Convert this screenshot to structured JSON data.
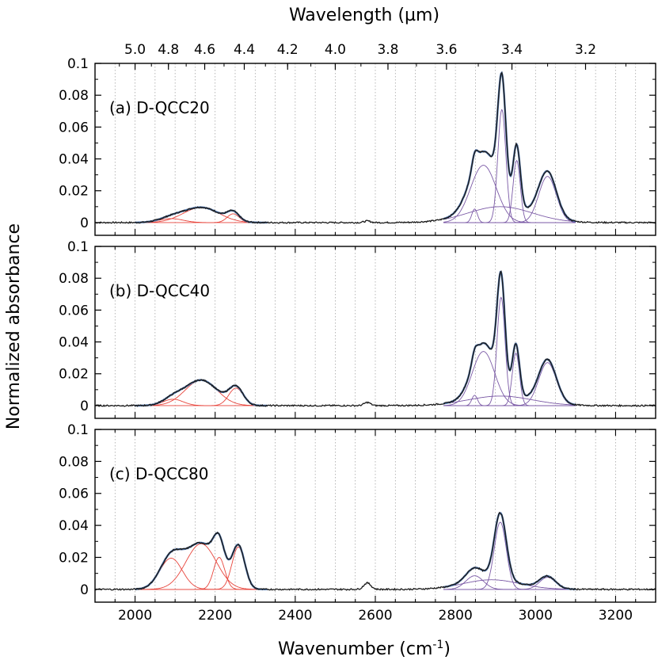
{
  "chart_data": {
    "type": "line",
    "x_title": "Wavenumber (cm",
    "x_title_sup": "-1",
    "x_title_end": ")",
    "top_title": "Wavelength (µm)",
    "y_title": "Normalized absorbance",
    "xlim": [
      1900,
      3300
    ],
    "ylim": [
      -0.008,
      0.1
    ],
    "x_ticks": [
      "2000",
      "2200",
      "2400",
      "2600",
      "2800",
      "3000",
      "3200"
    ],
    "x_tick_values": [
      2000,
      2200,
      2400,
      2600,
      2800,
      3000,
      3200
    ],
    "y_ticks": [
      "0",
      "0.02",
      "0.04",
      "0.06",
      "0.08",
      "0.1"
    ],
    "y_tick_values": [
      0,
      0.02,
      0.04,
      0.06,
      0.08,
      0.1
    ],
    "top_ticks": [
      "5.0",
      "4.8",
      "4.6",
      "4.4",
      "4.2",
      "4.0",
      "3.8",
      "3.6",
      "3.4",
      "3.2"
    ],
    "top_tick_values_um": [
      5.0,
      4.8,
      4.6,
      4.4,
      4.2,
      4.0,
      3.8,
      3.6,
      3.4,
      3.2
    ],
    "grid": true,
    "colors": {
      "spectrum": "#1a1a1a",
      "fit_envelope": "#4a6fa5",
      "cd_components": "#e8453c",
      "ch_components": "#7b5aa6"
    },
    "panels": [
      {
        "label": "(a) D-QCC20",
        "cd_peaks": [
          {
            "center": 2090,
            "height": 0.0025,
            "width": 30
          },
          {
            "center": 2165,
            "height": 0.0095,
            "width": 45
          },
          {
            "center": 2245,
            "height": 0.0055,
            "width": 15
          }
        ],
        "ch_peaks": [
          {
            "center": 2848,
            "height": 0.0085,
            "width": 7
          },
          {
            "center": 2870,
            "height": 0.036,
            "width": 32
          },
          {
            "center": 2916,
            "height": 0.071,
            "width": 10
          },
          {
            "center": 2953,
            "height": 0.039,
            "width": 9
          },
          {
            "center": 2912,
            "height": 0.01,
            "width": 80
          },
          {
            "center": 3030,
            "height": 0.029,
            "width": 22
          }
        ],
        "extra_peak": {
          "center": 2580,
          "height": 0.001,
          "width": 8
        }
      },
      {
        "label": "(b) D-QCC40",
        "cd_peaks": [
          {
            "center": 2095,
            "height": 0.004,
            "width": 25
          },
          {
            "center": 2165,
            "height": 0.016,
            "width": 40
          },
          {
            "center": 2252,
            "height": 0.011,
            "width": 18
          }
        ],
        "ch_peaks": [
          {
            "center": 2848,
            "height": 0.0065,
            "width": 7
          },
          {
            "center": 2870,
            "height": 0.034,
            "width": 28
          },
          {
            "center": 2914,
            "height": 0.068,
            "width": 10
          },
          {
            "center": 2951,
            "height": 0.033,
            "width": 9
          },
          {
            "center": 2912,
            "height": 0.006,
            "width": 80
          },
          {
            "center": 3030,
            "height": 0.027,
            "width": 22
          }
        ],
        "extra_peak": {
          "center": 2580,
          "height": 0.002,
          "width": 8
        }
      },
      {
        "label": "(c) D-QCC80",
        "cd_peaks": [
          {
            "center": 2090,
            "height": 0.0195,
            "width": 28
          },
          {
            "center": 2165,
            "height": 0.0285,
            "width": 38
          },
          {
            "center": 2210,
            "height": 0.02,
            "width": 14
          },
          {
            "center": 2258,
            "height": 0.0265,
            "width": 16
          }
        ],
        "ch_peaks": [
          {
            "center": 2848,
            "height": 0.0085,
            "width": 22
          },
          {
            "center": 2912,
            "height": 0.042,
            "width": 15
          },
          {
            "center": 2890,
            "height": 0.006,
            "width": 70
          },
          {
            "center": 3030,
            "height": 0.0075,
            "width": 20
          }
        ],
        "extra_peak": {
          "center": 2580,
          "height": 0.004,
          "width": 9
        }
      }
    ]
  }
}
